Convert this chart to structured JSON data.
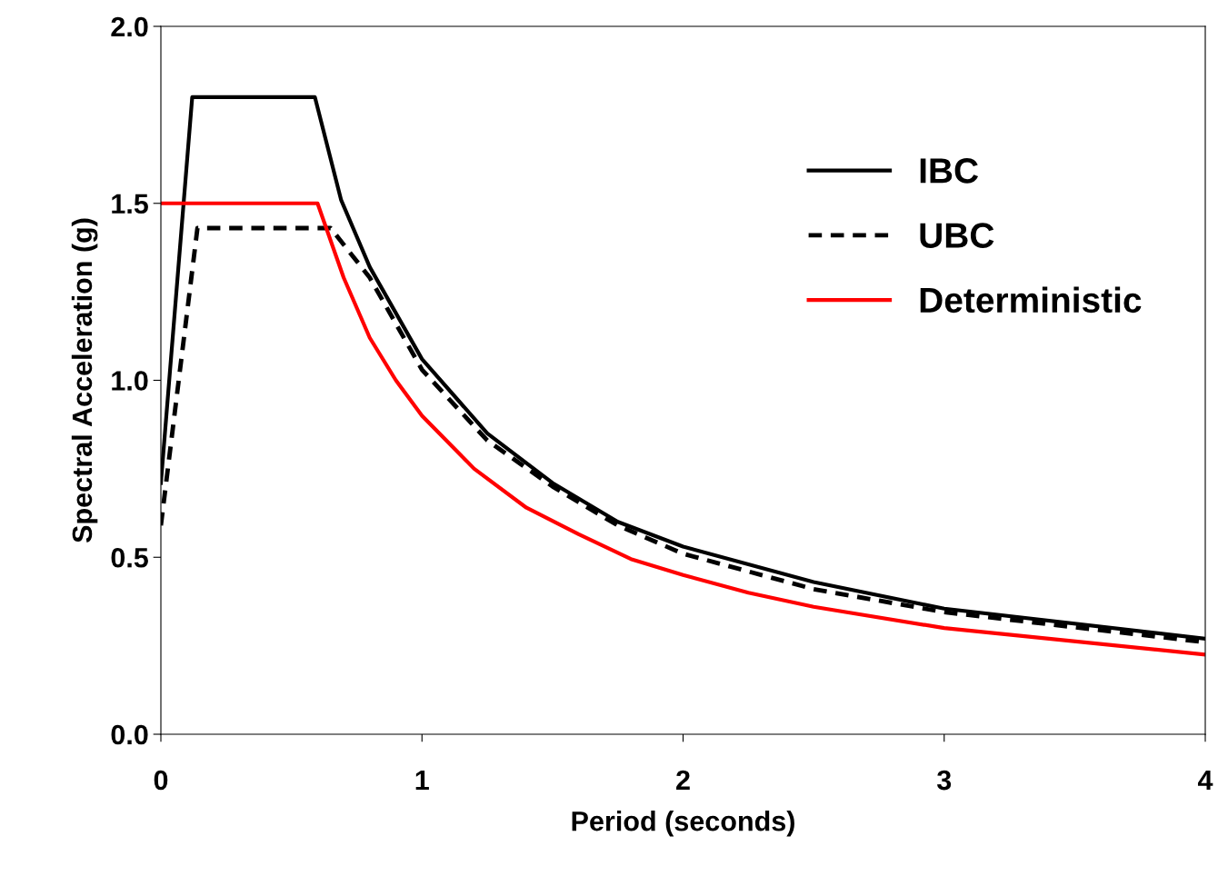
{
  "chart_data": {
    "type": "line",
    "xlabel": "Period (seconds)",
    "ylabel": "Spectral Acceleration (g)",
    "xlim": [
      0,
      4
    ],
    "xticks": [
      0,
      1,
      2,
      3,
      4
    ],
    "ylim": [
      0,
      2.0
    ],
    "yticks": [
      {
        "value": 0,
        "label": "0.0"
      },
      0.5,
      {
        "value": 1.0,
        "label": "1.0"
      },
      1.5,
      {
        "value": 2.0,
        "label": "2.0"
      }
    ],
    "grid": false,
    "legend": "top right",
    "marker": "none",
    "series": [
      {
        "name": "IBC",
        "color": "#000000",
        "line_style": "solid",
        "x": [
          0,
          0.12,
          0.59,
          0.69,
          0.8,
          1.0,
          1.25,
          1.5,
          1.75,
          2.0,
          2.5,
          3.0,
          4.0
        ],
        "values": [
          0.71,
          1.8,
          1.8,
          1.51,
          1.32,
          1.06,
          0.85,
          0.71,
          0.6,
          0.53,
          0.43,
          0.355,
          0.27
        ]
      },
      {
        "name": "UBC",
        "color": "#000000",
        "line_style": "dashed",
        "x": [
          0,
          0.14,
          0.65,
          0.8,
          1.0,
          1.25,
          1.5,
          1.75,
          2.0,
          2.5,
          3.0,
          4.0
        ],
        "values": [
          0.59,
          1.43,
          1.43,
          1.29,
          1.03,
          0.83,
          0.7,
          0.59,
          0.51,
          0.41,
          0.345,
          0.26
        ]
      },
      {
        "name": "Deterministic",
        "color": "#ff0000",
        "line_style": "solid",
        "x": [
          0,
          0.6,
          0.7,
          0.8,
          0.9,
          1.0,
          1.2,
          1.4,
          1.6,
          1.8,
          2.0,
          2.25,
          2.5,
          3.0,
          4.0
        ],
        "values": [
          1.5,
          1.5,
          1.29,
          1.12,
          1.0,
          0.9,
          0.75,
          0.64,
          0.565,
          0.495,
          0.45,
          0.4,
          0.36,
          0.3,
          0.225
        ]
      }
    ]
  }
}
